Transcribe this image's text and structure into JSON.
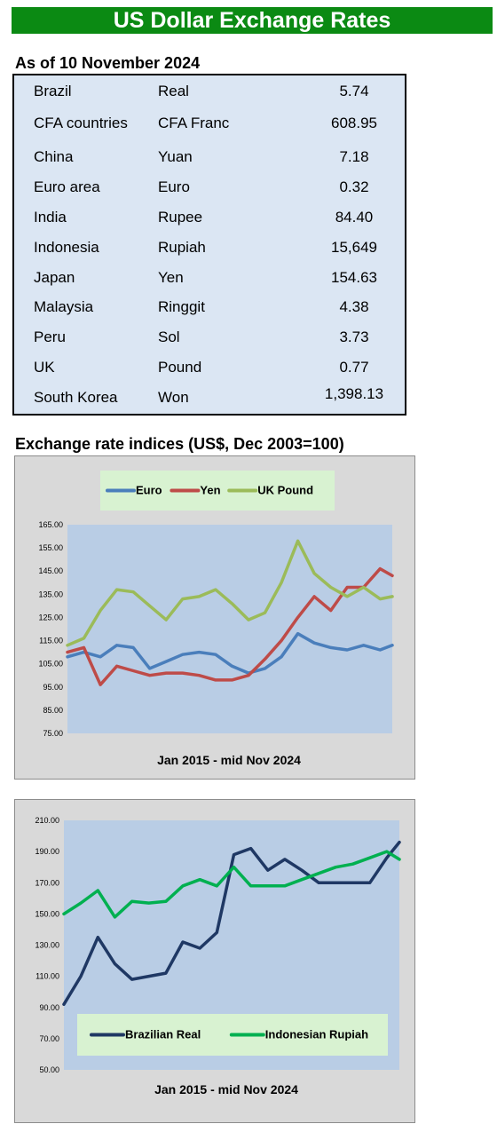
{
  "header": {
    "title": "US Dollar Exchange Rates"
  },
  "rates": {
    "as_of": "As of 10 November 2024",
    "rows": [
      {
        "country": "Brazil",
        "currency": "Real",
        "value": "5.74"
      },
      {
        "country": "CFA countries",
        "currency": "CFA Franc",
        "value": "608.95"
      },
      {
        "country": "China",
        "currency": "Yuan",
        "value": "7.18"
      },
      {
        "country": "Euro area",
        "currency": "Euro",
        "value": "0.32"
      },
      {
        "country": "India",
        "currency": "Rupee",
        "value": "84.40"
      },
      {
        "country": "Indonesia",
        "currency": "Rupiah",
        "value": "15,649"
      },
      {
        "country": "Japan",
        "currency": "Yen",
        "value": "154.63"
      },
      {
        "country": "Malaysia",
        "currency": "Ringgit",
        "value": "4.38"
      },
      {
        "country": "Peru",
        "currency": "Sol",
        "value": "3.73"
      },
      {
        "country": "UK",
        "currency": "Pound",
        "value": "0.77"
      },
      {
        "country": "South Korea",
        "currency": "Won",
        "value": "1,398.13"
      }
    ]
  },
  "indices": {
    "title": "Exchange rate indices (US$, Dec 2003=100)"
  },
  "chart_data": [
    {
      "type": "line",
      "title": "",
      "xlabel": "Jan 2015 -  mid Nov 2024",
      "ylabel": "",
      "ylim": [
        75,
        165
      ],
      "yticks": [
        "165.00",
        "155.00",
        "145.00",
        "135.00",
        "125.00",
        "115.00",
        "105.00",
        "95.00",
        "85.00",
        "75.00"
      ],
      "grid": false,
      "legend": "top",
      "x": [
        2015.0,
        2015.5,
        2016.0,
        2016.5,
        2017.0,
        2017.5,
        2018.0,
        2018.5,
        2019.0,
        2019.5,
        2020.0,
        2020.5,
        2021.0,
        2021.5,
        2022.0,
        2022.5,
        2023.0,
        2023.5,
        2024.0,
        2024.5,
        2024.87
      ],
      "series": [
        {
          "name": "Euro",
          "color": "#4a7ebb",
          "values": [
            108,
            110,
            108,
            113,
            112,
            103,
            106,
            109,
            110,
            109,
            104,
            101,
            103,
            108,
            118,
            114,
            112,
            111,
            113,
            111,
            113
          ]
        },
        {
          "name": "Yen",
          "color": "#be4b48",
          "values": [
            110,
            112,
            96,
            104,
            102,
            100,
            101,
            101,
            100,
            98,
            98,
            100,
            107,
            115,
            125,
            134,
            128,
            138,
            138,
            146,
            143
          ]
        },
        {
          "name": "UK Pound",
          "color": "#9bbb59",
          "values": [
            113,
            116,
            128,
            137,
            136,
            130,
            124,
            133,
            134,
            137,
            131,
            124,
            127,
            140,
            158,
            144,
            138,
            134,
            138,
            133,
            134
          ]
        }
      ]
    },
    {
      "type": "line",
      "title": "",
      "xlabel": "Jan 2015 - mid Nov 2024",
      "ylabel": "",
      "ylim": [
        50,
        210
      ],
      "yticks": [
        "210.00",
        "190.00",
        "170.00",
        "150.00",
        "130.00",
        "110.00",
        "90.00",
        "70.00",
        "50.00"
      ],
      "grid": false,
      "legend": "bottom",
      "x": [
        2015.0,
        2015.5,
        2016.0,
        2016.5,
        2017.0,
        2017.5,
        2018.0,
        2018.5,
        2019.0,
        2019.5,
        2020.0,
        2020.5,
        2021.0,
        2021.5,
        2022.0,
        2022.5,
        2023.0,
        2023.5,
        2024.0,
        2024.5,
        2024.87
      ],
      "series": [
        {
          "name": "Brazilian Real",
          "color": "#1f3864",
          "values": [
            92,
            110,
            135,
            118,
            108,
            110,
            112,
            132,
            128,
            138,
            188,
            192,
            178,
            185,
            178,
            170,
            170,
            170,
            170,
            186,
            196
          ]
        },
        {
          "name": "Indonesian Rupiah",
          "color": "#00b050",
          "values": [
            150,
            157,
            165,
            148,
            158,
            157,
            158,
            168,
            172,
            168,
            180,
            168,
            168,
            168,
            172,
            176,
            180,
            182,
            186,
            190,
            185
          ]
        }
      ]
    }
  ]
}
